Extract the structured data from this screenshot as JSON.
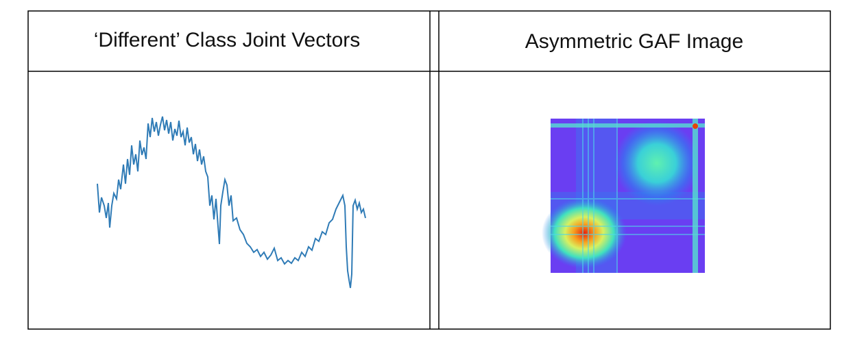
{
  "table": {
    "headers": [
      "‘Different’ Class Joint Vectors",
      "Asymmetric GAF Image"
    ]
  }
}
